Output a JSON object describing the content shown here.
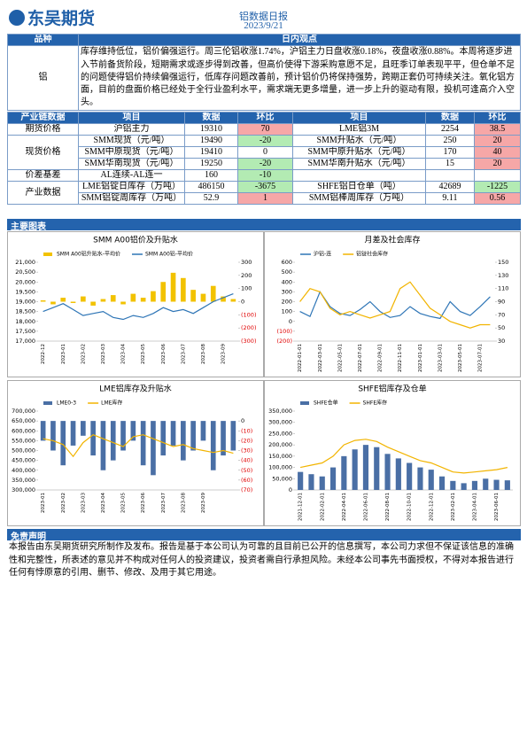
{
  "header": {
    "logo": "东吴期货",
    "title": "铝数据日报",
    "date": "2023/9/21"
  },
  "view_table": {
    "headers": [
      "品种",
      "日内观点"
    ],
    "rows": [
      [
        "铝",
        "库存维持低位，铝价偏强运行。周三伦铝收涨1.74%，沪铝主力日盘收涨0.18%，夜盘收涨0.88%。本周将逐步进入节前备货阶段，短期需求或逐步得到改善，但高价使得下游采购意愿不足，且旺季订单表现平平，但仓单不足的问题使得铝价持续偏强运行，低库存问题改善前，预计铝价仍将保持强势，跨期正套仍可持续关注。氧化铝方面，目前的盘面价格已经处于全行业盈利水平，需求端无更多增量，进一步上升的驱动有限，投机可逢高介入空头。"
      ]
    ]
  },
  "data_table": {
    "headers": [
      "产业链数据",
      "项目",
      "数据",
      "环比",
      "项目",
      "数据",
      "环比"
    ],
    "up_color": "#f6a7a7",
    "down_color": "#b3ebb3",
    "groups": [
      {
        "name": "期货价格",
        "rows": [
          {
            "left": {
              "item": "沪铝主力",
              "value": 19310,
              "change": 70
            },
            "right": {
              "item": "LME铝3M",
              "value": 2254,
              "change": 38.5
            }
          }
        ]
      },
      {
        "name": "现货价格",
        "rows": [
          {
            "left": {
              "item": "SMM现货（元/吨）",
              "value": 19490,
              "change": -20
            },
            "right": {
              "item": "SMM升贴水（元/吨）",
              "value": 250,
              "change": 20
            }
          },
          {
            "left": {
              "item": "SMM中原现货（元/吨）",
              "value": 19410,
              "change": 0
            },
            "right": {
              "item": "SMM中原升贴水（元/吨）",
              "value": 170,
              "change": 40
            }
          },
          {
            "left": {
              "item": "SMM华南现货（元/吨）",
              "value": 19250,
              "change": -20
            },
            "right": {
              "item": "SMM华南升贴水（元/吨）",
              "value": 15,
              "change": 20
            }
          }
        ]
      },
      {
        "name": "价差基差",
        "rows": [
          {
            "left": {
              "item": "AL连续-AL连一",
              "value": 160,
              "change": -10
            }
          }
        ]
      },
      {
        "name": "产业数据",
        "rows": [
          {
            "left": {
              "item": "LME铝锭日库存（万吨）",
              "value": 486150,
              "change": -3675
            },
            "right": {
              "item": "SHFE铝日仓单（吨）",
              "value": 42689,
              "change": -1225
            }
          },
          {
            "left": {
              "item": "SMM铝锭周库存（万吨）",
              "value": 52.9,
              "change": 1
            },
            "right": {
              "item": "SMM铝棒周库存（万吨）",
              "value": 9.11,
              "change": 0.56
            }
          }
        ]
      }
    ]
  },
  "sections": {
    "charts": "主要图表",
    "disclaimer": "免责声明"
  },
  "disclaimer_text": "本报告由东吴期货研究所制作及发布。报告是基于本公司认为可靠的且目前已公开的信息撰写，本公司力求但不保证该信息的准确性和完整性，所表述的意见并不构成对任何人的投资建议，投资者需自行承担风险。未经本公司事先书面授权，不得对本报告进行任何有悖原意的引用、删节、修改、及用于其它用途。",
  "charts": [
    {
      "type": "combo",
      "title": "SMM A00铝价及升贴水",
      "negative_tick_color": "#e00000",
      "categories": [
        "2022-12",
        null,
        "2023-01",
        null,
        "2023-02",
        null,
        "2023-03",
        null,
        "2023-04",
        null,
        "2023-05",
        null,
        "2023-06",
        null,
        "2023-07",
        null,
        "2023-08",
        null,
        "2023-09",
        null
      ],
      "series": [
        {
          "name": "SMM A00铝升贴水-平均价",
          "kind": "bar",
          "axis": "y2",
          "color": "#f2c200",
          "values": [
            10,
            -20,
            30,
            -10,
            40,
            -30,
            20,
            50,
            -20,
            60,
            30,
            80,
            150,
            220,
            180,
            90,
            60,
            120,
            40,
            20
          ]
        },
        {
          "name": "SMM A00铝-平均价",
          "kind": "line",
          "axis": "y",
          "color": "#2e75b6",
          "values": [
            18500,
            18700,
            18900,
            18600,
            18300,
            18400,
            18500,
            18200,
            18100,
            18300,
            18200,
            18400,
            18700,
            18500,
            18600,
            18400,
            18700,
            19000,
            19200,
            19400
          ]
        }
      ],
      "ylim": [
        17000,
        21000
      ],
      "yticks": [
        {
          "value": 17000,
          "label": "17,000"
        },
        {
          "value": 17500,
          "label": "17,500"
        },
        {
          "value": 18000,
          "label": "18,000"
        },
        {
          "value": 18500,
          "label": "18,500"
        },
        {
          "value": 19000,
          "label": "19,000"
        },
        {
          "value": 19500,
          "label": "19,500"
        },
        {
          "value": 20000,
          "label": "20,000"
        },
        {
          "value": 20500,
          "label": "20,500"
        },
        {
          "value": 21000,
          "label": "21,000"
        }
      ],
      "y2lim": [
        -300,
        300
      ],
      "y2ticks": [
        {
          "value": -300,
          "label": "(300)"
        },
        {
          "value": -200,
          "label": "(200)"
        },
        {
          "value": -100,
          "label": "(100)"
        },
        0,
        100,
        200,
        300
      ]
    },
    {
      "type": "combo",
      "title": "月差及社会库存",
      "negative_tick_color": "#e00000",
      "categories": [
        "2022-01-01",
        null,
        "2022-03-01",
        null,
        "2022-05-01",
        null,
        "2022-07-01",
        null,
        "2022-09-01",
        null,
        "2022-11-01",
        null,
        "2023-01-01",
        null,
        "2023-03-01",
        null,
        "2023-05-01",
        null,
        "2023-07-01",
        null
      ],
      "series": [
        {
          "name": "沪铝-连",
          "kind": "line",
          "axis": "y",
          "color": "#2e75b6",
          "values": [
            100,
            50,
            300,
            150,
            80,
            60,
            120,
            200,
            100,
            40,
            60,
            150,
            80,
            50,
            30,
            200,
            100,
            60,
            150,
            250
          ]
        },
        {
          "name": "铝锭社会库存",
          "kind": "line",
          "axis": "y2",
          "color": "#f2b400",
          "values": [
            90,
            110,
            105,
            80,
            70,
            75,
            70,
            65,
            70,
            75,
            110,
            120,
            100,
            80,
            70,
            60,
            55,
            50,
            55,
            55
          ]
        }
      ],
      "ylim": [
        -200,
        600
      ],
      "yticks": [
        {
          "value": -200,
          "label": "(200)"
        },
        {
          "value": -100,
          "label": "(100)"
        },
        0,
        100,
        200,
        300,
        400,
        500,
        600
      ],
      "y2lim": [
        30,
        150
      ],
      "y2ticks": [
        30,
        50,
        70,
        90,
        110,
        130,
        150
      ]
    },
    {
      "type": "combo",
      "title": "LME铝库存及升贴水",
      "negative_tick_color": "#e00000",
      "categories": [
        "2023-01",
        null,
        "2023-02",
        null,
        "2023-03",
        null,
        "2023-04",
        null,
        "2023-05",
        null,
        "2023-06",
        null,
        "2023-07",
        null,
        "2023-08",
        null,
        "2023-09",
        null,
        null,
        null
      ],
      "series": [
        {
          "name": "LME0-3",
          "kind": "bar",
          "axis": "y2",
          "color": "#4a6fa5",
          "values": [
            -20,
            -30,
            -45,
            -25,
            -15,
            -35,
            -50,
            -40,
            -30,
            -20,
            -45,
            -55,
            -35,
            -25,
            -40,
            -30,
            -20,
            -50,
            -35,
            -30
          ]
        },
        {
          "name": "LME库存",
          "kind": "line",
          "axis": "y",
          "color": "#f2b400",
          "values": [
            560000,
            550000,
            530000,
            470000,
            540000,
            580000,
            560000,
            540000,
            520000,
            570000,
            580000,
            560000,
            540000,
            520000,
            530000,
            510000,
            500000,
            490000,
            500000,
            486150
          ]
        }
      ],
      "ylim": [
        300000,
        700000
      ],
      "yticks": [
        {
          "value": 300000,
          "label": "300,000"
        },
        {
          "value": 350000,
          "label": "350,000"
        },
        {
          "value": 400000,
          "label": "400,000"
        },
        {
          "value": 450000,
          "label": "450,000"
        },
        {
          "value": 500000,
          "label": "500,000"
        },
        {
          "value": 550000,
          "label": "550,000"
        },
        {
          "value": 600000,
          "label": "600,000"
        },
        {
          "value": 650000,
          "label": "650,000"
        },
        {
          "value": 700000,
          "label": "700,000"
        }
      ],
      "y2lim": [
        -70,
        10
      ],
      "y2ticks": [
        {
          "value": -70,
          "label": "(70)"
        },
        {
          "value": -60,
          "label": "(60)"
        },
        {
          "value": -50,
          "label": "(50)"
        },
        {
          "value": -40,
          "label": "(40)"
        },
        {
          "value": -30,
          "label": "(30)"
        },
        {
          "value": -20,
          "label": "(20)"
        },
        {
          "value": -10,
          "label": "(10)"
        },
        0
      ]
    },
    {
      "type": "combo",
      "title": "SHFE铝库存及仓单",
      "negative_tick_color": "#e00000",
      "categories": [
        "2021-12-01",
        null,
        "2022-02-01",
        null,
        "2022-04-01",
        null,
        "2022-06-01",
        null,
        "2022-08-01",
        null,
        "2022-10-01",
        null,
        "2022-12-01",
        null,
        "2023-02-01",
        null,
        "2023-04-01",
        null,
        "2023-06-01",
        null
      ],
      "series": [
        {
          "name": "SHFE仓单",
          "kind": "bar",
          "axis": "y",
          "color": "#4a6fa5",
          "values": [
            80000,
            70000,
            60000,
            100000,
            150000,
            180000,
            200000,
            190000,
            160000,
            140000,
            120000,
            100000,
            90000,
            60000,
            40000,
            30000,
            40000,
            50000,
            45000,
            42689
          ]
        },
        {
          "name": "SHFE库存",
          "kind": "line",
          "axis": "y",
          "color": "#f2b400",
          "values": [
            100000,
            110000,
            120000,
            150000,
            200000,
            220000,
            225000,
            215000,
            190000,
            170000,
            150000,
            130000,
            120000,
            100000,
            80000,
            75000,
            80000,
            85000,
            90000,
            100000
          ]
        }
      ],
      "ylim": [
        0,
        350000
      ],
      "yticks": [
        0,
        {
          "value": 50000,
          "label": "50,000"
        },
        {
          "value": 100000,
          "label": "100,000"
        },
        {
          "value": 150000,
          "label": "150,000"
        },
        {
          "value": 200000,
          "label": "200,000"
        },
        {
          "value": 250000,
          "label": "250,000"
        },
        {
          "value": 300000,
          "label": "300,000"
        },
        {
          "value": 350000,
          "label": "350,000"
        }
      ]
    }
  ]
}
